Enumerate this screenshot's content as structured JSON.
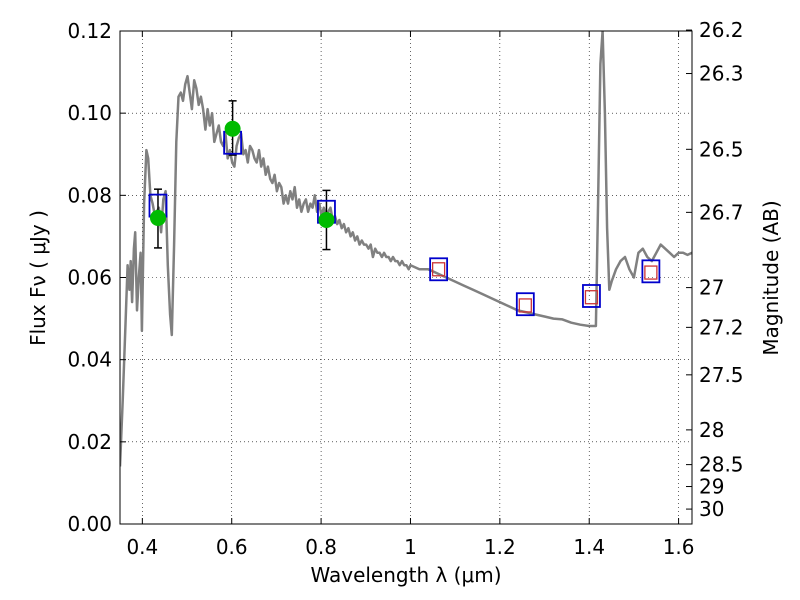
{
  "chart_data": {
    "type": "line",
    "xlabel": "Wavelength  λ (μm)",
    "ylabel": "Flux  Fν  ( μJy )",
    "ylabel2": "Magnitude (AB)",
    "xlim": [
      0.35,
      1.63
    ],
    "ylim": [
      0.0,
      0.12
    ],
    "grid": true,
    "x_ticks": [
      0.4,
      0.6,
      0.8,
      1.0,
      1.2,
      1.4,
      1.6
    ],
    "x_tick_labels": [
      "0.4",
      "0.6",
      "0.8",
      "1",
      "1.2",
      "1.4",
      "1.6"
    ],
    "y_ticks": [
      0.0,
      0.02,
      0.04,
      0.06,
      0.08,
      0.1,
      0.12
    ],
    "y_tick_labels": [
      "0.00",
      "0.02",
      "0.04",
      "0.06",
      "0.08",
      "0.10",
      "0.12"
    ],
    "mag_ticks": [
      {
        "label": "26.2",
        "mag": 26.2
      },
      {
        "label": "26.3",
        "mag": 26.3
      },
      {
        "label": "26.5",
        "mag": 26.5
      },
      {
        "label": "26.7",
        "mag": 26.7
      },
      {
        "label": "27",
        "mag": 27.0
      },
      {
        "label": "27.2",
        "mag": 27.2
      },
      {
        "label": "27.5",
        "mag": 27.5
      },
      {
        "label": "28",
        "mag": 28.0
      },
      {
        "label": "28.5",
        "mag": 28.5
      },
      {
        "label": "29",
        "mag": 29.0
      },
      {
        "label": "30",
        "mag": 30.0
      }
    ],
    "series": [
      {
        "name": "model SED",
        "kind": "line",
        "color": "#808080",
        "points": [
          [
            0.35,
            0.014
          ],
          [
            0.356,
            0.03
          ],
          [
            0.362,
            0.048
          ],
          [
            0.367,
            0.063
          ],
          [
            0.371,
            0.057
          ],
          [
            0.374,
            0.064
          ],
          [
            0.377,
            0.054
          ],
          [
            0.381,
            0.067
          ],
          [
            0.384,
            0.071
          ],
          [
            0.388,
            0.052
          ],
          [
            0.392,
            0.06
          ],
          [
            0.396,
            0.066
          ],
          [
            0.399,
            0.047
          ],
          [
            0.404,
            0.078
          ],
          [
            0.409,
            0.091
          ],
          [
            0.413,
            0.089
          ],
          [
            0.418,
            0.08
          ],
          [
            0.423,
            0.078
          ],
          [
            0.428,
            0.075
          ],
          [
            0.432,
            0.076
          ],
          [
            0.437,
            0.077
          ],
          [
            0.442,
            0.071
          ],
          [
            0.447,
            0.079
          ],
          [
            0.452,
            0.081
          ],
          [
            0.457,
            0.063
          ],
          [
            0.462,
            0.051
          ],
          [
            0.466,
            0.046
          ],
          [
            0.471,
            0.068
          ],
          [
            0.476,
            0.093
          ],
          [
            0.481,
            0.104
          ],
          [
            0.486,
            0.105
          ],
          [
            0.491,
            0.103
          ],
          [
            0.496,
            0.107
          ],
          [
            0.501,
            0.109
          ],
          [
            0.506,
            0.105
          ],
          [
            0.511,
            0.101
          ],
          [
            0.516,
            0.108
          ],
          [
            0.521,
            0.106
          ],
          [
            0.526,
            0.102
          ],
          [
            0.531,
            0.104
          ],
          [
            0.536,
            0.101
          ],
          [
            0.541,
            0.096
          ],
          [
            0.546,
            0.101
          ],
          [
            0.551,
            0.097
          ],
          [
            0.556,
            0.1
          ],
          [
            0.561,
            0.093
          ],
          [
            0.566,
            0.095
          ],
          [
            0.571,
            0.097
          ],
          [
            0.576,
            0.093
          ],
          [
            0.581,
            0.092
          ],
          [
            0.586,
            0.095
          ],
          [
            0.591,
            0.089
          ],
          [
            0.596,
            0.091
          ],
          [
            0.601,
            0.088
          ],
          [
            0.606,
            0.087
          ],
          [
            0.611,
            0.092
          ],
          [
            0.616,
            0.094
          ],
          [
            0.621,
            0.095
          ],
          [
            0.626,
            0.09
          ],
          [
            0.631,
            0.091
          ],
          [
            0.636,
            0.088
          ],
          [
            0.641,
            0.092
          ],
          [
            0.646,
            0.091
          ],
          [
            0.651,
            0.089
          ],
          [
            0.656,
            0.088
          ],
          [
            0.661,
            0.091
          ],
          [
            0.666,
            0.087
          ],
          [
            0.671,
            0.089
          ],
          [
            0.676,
            0.085
          ],
          [
            0.681,
            0.087
          ],
          [
            0.686,
            0.084
          ],
          [
            0.691,
            0.083
          ],
          [
            0.696,
            0.085
          ],
          [
            0.701,
            0.081
          ],
          [
            0.706,
            0.083
          ],
          [
            0.711,
            0.082
          ],
          [
            0.716,
            0.078
          ],
          [
            0.721,
            0.08
          ],
          [
            0.726,
            0.078
          ],
          [
            0.731,
            0.081
          ],
          [
            0.736,
            0.079
          ],
          [
            0.741,
            0.082
          ],
          [
            0.746,
            0.077
          ],
          [
            0.751,
            0.079
          ],
          [
            0.756,
            0.076
          ],
          [
            0.761,
            0.078
          ],
          [
            0.766,
            0.079
          ],
          [
            0.771,
            0.076
          ],
          [
            0.776,
            0.078
          ],
          [
            0.781,
            0.077
          ],
          [
            0.786,
            0.08
          ],
          [
            0.791,
            0.076
          ],
          [
            0.796,
            0.078
          ],
          [
            0.801,
            0.075
          ],
          [
            0.806,
            0.077
          ],
          [
            0.811,
            0.075
          ],
          [
            0.816,
            0.076
          ],
          [
            0.821,
            0.077
          ],
          [
            0.826,
            0.074
          ],
          [
            0.831,
            0.075
          ],
          [
            0.836,
            0.073
          ],
          [
            0.841,
            0.074
          ],
          [
            0.846,
            0.072
          ],
          [
            0.851,
            0.073
          ],
          [
            0.856,
            0.071
          ],
          [
            0.861,
            0.072
          ],
          [
            0.866,
            0.07
          ],
          [
            0.871,
            0.071
          ],
          [
            0.876,
            0.069
          ],
          [
            0.881,
            0.07
          ],
          [
            0.886,
            0.068
          ],
          [
            0.891,
            0.069
          ],
          [
            0.896,
            0.068
          ],
          [
            0.901,
            0.068
          ],
          [
            0.906,
            0.067
          ],
          [
            0.911,
            0.068
          ],
          [
            0.916,
            0.065
          ],
          [
            0.921,
            0.067
          ],
          [
            0.926,
            0.066
          ],
          [
            0.931,
            0.066
          ],
          [
            0.936,
            0.065
          ],
          [
            0.941,
            0.066
          ],
          [
            0.946,
            0.065
          ],
          [
            0.951,
            0.065
          ],
          [
            0.956,
            0.064
          ],
          [
            0.961,
            0.065
          ],
          [
            0.966,
            0.064
          ],
          [
            0.971,
            0.064
          ],
          [
            0.976,
            0.063
          ],
          [
            0.981,
            0.064
          ],
          [
            0.986,
            0.063
          ],
          [
            0.991,
            0.063
          ],
          [
            0.996,
            0.062
          ],
          [
            1.0,
            0.063
          ],
          [
            1.02,
            0.062
          ],
          [
            1.04,
            0.062
          ],
          [
            1.06,
            0.061
          ],
          [
            1.08,
            0.06
          ],
          [
            1.1,
            0.059
          ],
          [
            1.12,
            0.058
          ],
          [
            1.14,
            0.057
          ],
          [
            1.16,
            0.056
          ],
          [
            1.18,
            0.055
          ],
          [
            1.2,
            0.054
          ],
          [
            1.22,
            0.053
          ],
          [
            1.24,
            0.052
          ],
          [
            1.26,
            0.0515
          ],
          [
            1.28,
            0.051
          ],
          [
            1.3,
            0.0505
          ],
          [
            1.32,
            0.05
          ],
          [
            1.34,
            0.0498
          ],
          [
            1.36,
            0.049
          ],
          [
            1.38,
            0.0485
          ],
          [
            1.4,
            0.0482
          ],
          [
            1.415,
            0.0482
          ],
          [
            1.42,
            0.08
          ],
          [
            1.425,
            0.112
          ],
          [
            1.43,
            0.12
          ],
          [
            1.435,
            0.1
          ],
          [
            1.44,
            0.072
          ],
          [
            1.445,
            0.057
          ],
          [
            1.45,
            0.059
          ],
          [
            1.46,
            0.062
          ],
          [
            1.47,
            0.064
          ],
          [
            1.48,
            0.065
          ],
          [
            1.49,
            0.062
          ],
          [
            1.5,
            0.06
          ],
          [
            1.51,
            0.066
          ],
          [
            1.52,
            0.067
          ],
          [
            1.53,
            0.065
          ],
          [
            1.54,
            0.064
          ],
          [
            1.55,
            0.066
          ],
          [
            1.56,
            0.068
          ],
          [
            1.57,
            0.067
          ],
          [
            1.58,
            0.066
          ],
          [
            1.59,
            0.065
          ],
          [
            1.6,
            0.066
          ],
          [
            1.61,
            0.066
          ],
          [
            1.62,
            0.0655
          ],
          [
            1.63,
            0.066
          ]
        ]
      },
      {
        "name": "observed flux (blue squares)",
        "kind": "open-square",
        "color": "#0000cc",
        "points": [
          [
            0.435,
            0.0775
          ],
          [
            0.602,
            0.0928
          ],
          [
            0.812,
            0.076
          ],
          [
            1.063,
            0.062
          ],
          [
            1.257,
            0.0535
          ],
          [
            1.405,
            0.0555
          ],
          [
            1.538,
            0.0615
          ]
        ]
      },
      {
        "name": "model photometry (red squares)",
        "kind": "open-square-small",
        "color": "#cc3333",
        "points": [
          [
            1.063,
            0.062
          ],
          [
            1.257,
            0.0532
          ],
          [
            1.405,
            0.0552
          ],
          [
            1.538,
            0.0612
          ]
        ]
      },
      {
        "name": "measured flux (green circles)",
        "kind": "circle",
        "color": "#00bb00",
        "points": [
          [
            0.435,
            0.0745
          ],
          [
            0.602,
            0.0962
          ],
          [
            0.812,
            0.074
          ]
        ]
      },
      {
        "name": "error bars",
        "kind": "errorbar",
        "color": "#000000",
        "points": [
          {
            "x": 0.435,
            "y": 0.0745,
            "ylow": 0.0672,
            "yhigh": 0.0815
          },
          {
            "x": 0.602,
            "y": 0.0962,
            "ylow": 0.0898,
            "yhigh": 0.103
          },
          {
            "x": 0.812,
            "y": 0.074,
            "ylow": 0.0668,
            "yhigh": 0.0812
          }
        ]
      }
    ]
  }
}
